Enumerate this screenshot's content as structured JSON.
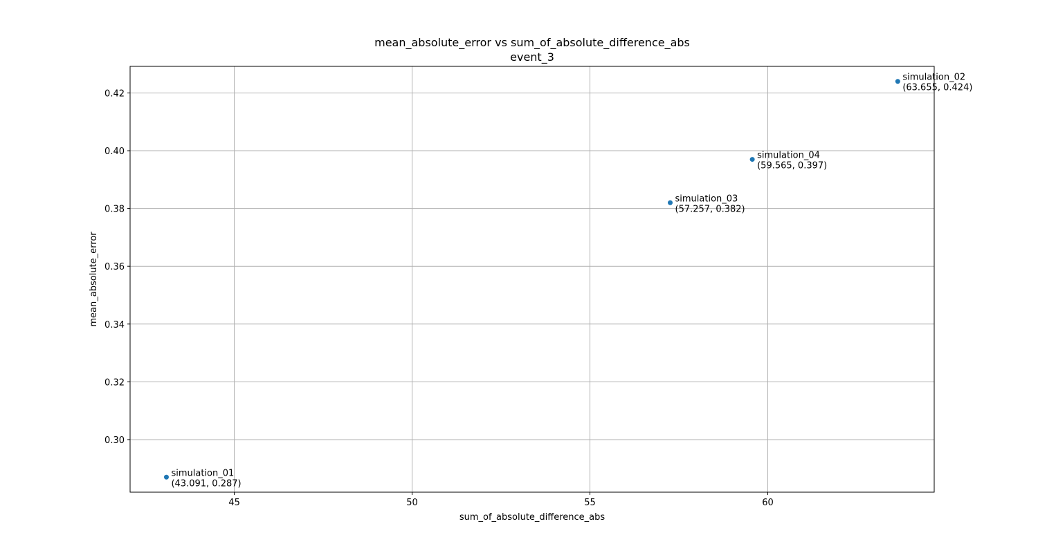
{
  "chart_data": {
    "type": "scatter",
    "title": "mean_absolute_error vs sum_of_absolute_difference_abs",
    "subtitle": "event_3",
    "xlabel": "sum_of_absolute_difference_abs",
    "ylabel": "mean_absolute_error",
    "xlim": [
      42.07,
      64.68
    ],
    "ylim": [
      0.2818,
      0.4292
    ],
    "xticks": [
      45,
      50,
      55,
      60
    ],
    "xtick_labels": [
      "45",
      "50",
      "55",
      "60"
    ],
    "yticks": [
      0.3,
      0.32,
      0.34,
      0.36,
      0.38,
      0.4,
      0.42
    ],
    "ytick_labels": [
      "0.30",
      "0.32",
      "0.34",
      "0.36",
      "0.38",
      "0.40",
      "0.42"
    ],
    "grid": true,
    "marker_color": "#1f77b4",
    "grid_color": "#b0b0b0",
    "points": [
      {
        "label": "simulation_01",
        "coord_text": "(43.091, 0.287)",
        "x": 43.091,
        "y": 0.287
      },
      {
        "label": "simulation_02",
        "coord_text": "(63.655, 0.424)",
        "x": 63.655,
        "y": 0.424
      },
      {
        "label": "simulation_03",
        "coord_text": "(57.257, 0.382)",
        "x": 57.257,
        "y": 0.382
      },
      {
        "label": "simulation_04",
        "coord_text": "(59.565, 0.397)",
        "x": 59.565,
        "y": 0.397
      }
    ]
  }
}
